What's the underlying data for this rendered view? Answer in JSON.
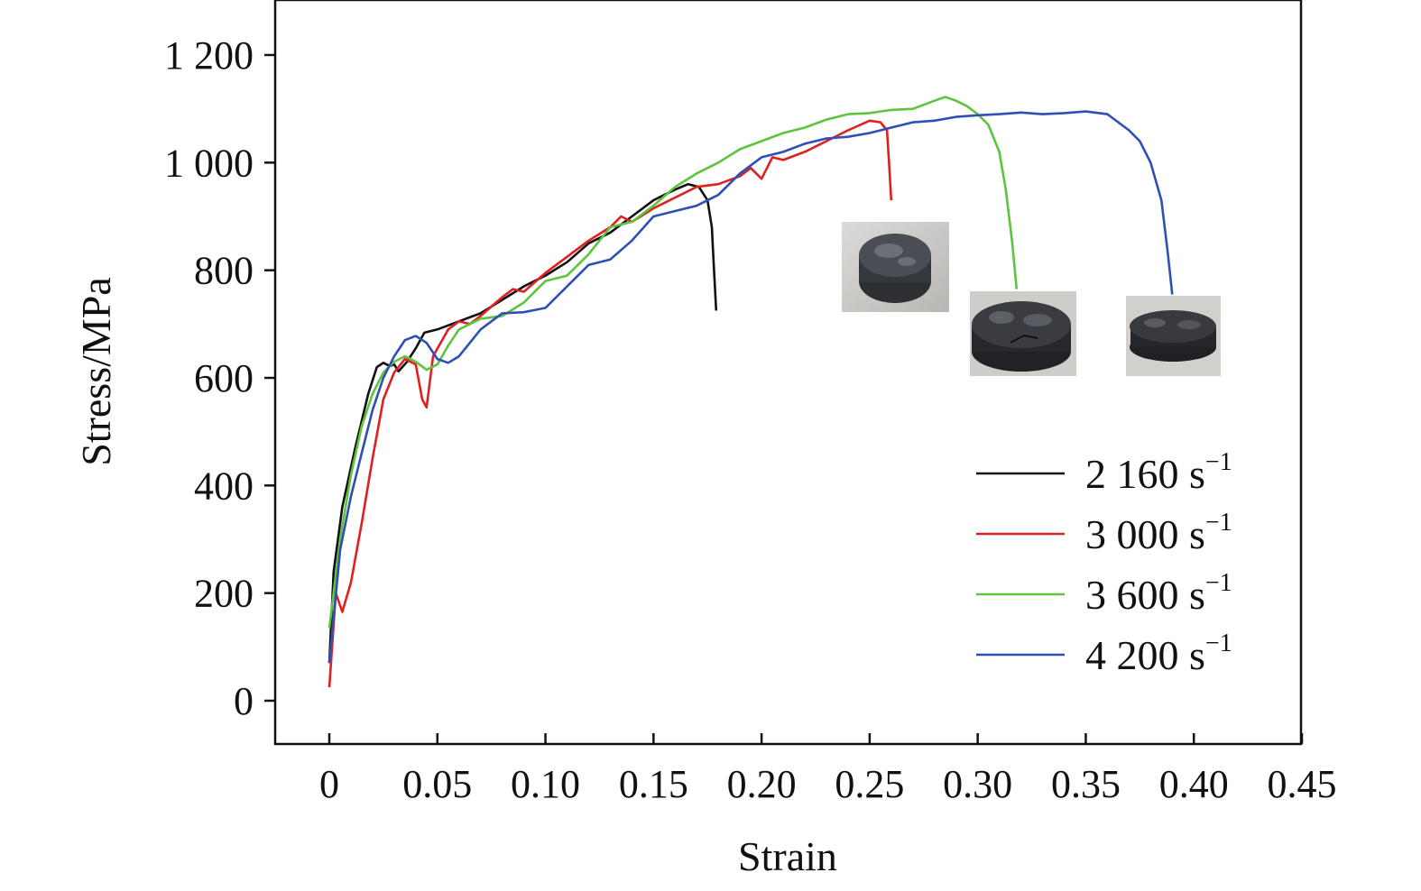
{
  "chart_data": {
    "type": "line",
    "title": "",
    "xlabel": "Strain",
    "ylabel": "Stress/MPa",
    "xlim": [
      -0.025,
      0.45
    ],
    "ylim": [
      -80,
      1300
    ],
    "x_ticks": [
      0,
      0.05,
      0.1,
      0.15,
      0.2,
      0.25,
      0.3,
      0.35,
      0.4,
      0.45
    ],
    "x_tick_labels": [
      "0",
      "0.05",
      "0.10",
      "0.15",
      "0.20",
      "0.25",
      "0.30",
      "0.35",
      "0.40",
      "0.45"
    ],
    "y_ticks": [
      0,
      200,
      400,
      600,
      800,
      1000,
      1200
    ],
    "y_tick_labels": [
      "0",
      "200",
      "400",
      "600",
      "800",
      "1 000",
      "1 200"
    ],
    "grid": false,
    "legend_position": "bottom-right",
    "series": [
      {
        "name": "2 160 s",
        "name_superscript": "−1",
        "color": "#111111",
        "points": [
          [
            0.0,
            70
          ],
          [
            0.002,
            240
          ],
          [
            0.006,
            360
          ],
          [
            0.012,
            470
          ],
          [
            0.018,
            570
          ],
          [
            0.022,
            620
          ],
          [
            0.025,
            628
          ],
          [
            0.028,
            622
          ],
          [
            0.03,
            625
          ],
          [
            0.032,
            612
          ],
          [
            0.036,
            630
          ],
          [
            0.04,
            655
          ],
          [
            0.044,
            684
          ],
          [
            0.05,
            690
          ],
          [
            0.06,
            705
          ],
          [
            0.07,
            720
          ],
          [
            0.08,
            745
          ],
          [
            0.09,
            770
          ],
          [
            0.1,
            790
          ],
          [
            0.11,
            815
          ],
          [
            0.12,
            850
          ],
          [
            0.13,
            870
          ],
          [
            0.14,
            900
          ],
          [
            0.15,
            930
          ],
          [
            0.16,
            950
          ],
          [
            0.166,
            960
          ],
          [
            0.171,
            955
          ],
          [
            0.175,
            930
          ],
          [
            0.177,
            880
          ],
          [
            0.178,
            800
          ],
          [
            0.179,
            725
          ]
        ]
      },
      {
        "name": "3 000 s",
        "name_superscript": "−1",
        "color": "#e02020",
        "points": [
          [
            0.0,
            25
          ],
          [
            0.003,
            200
          ],
          [
            0.006,
            165
          ],
          [
            0.01,
            220
          ],
          [
            0.015,
            330
          ],
          [
            0.02,
            450
          ],
          [
            0.025,
            560
          ],
          [
            0.03,
            610
          ],
          [
            0.035,
            635
          ],
          [
            0.04,
            625
          ],
          [
            0.043,
            560
          ],
          [
            0.045,
            545
          ],
          [
            0.048,
            640
          ],
          [
            0.055,
            690
          ],
          [
            0.06,
            705
          ],
          [
            0.065,
            700
          ],
          [
            0.07,
            715
          ],
          [
            0.08,
            750
          ],
          [
            0.085,
            765
          ],
          [
            0.09,
            760
          ],
          [
            0.1,
            795
          ],
          [
            0.11,
            825
          ],
          [
            0.12,
            855
          ],
          [
            0.13,
            880
          ],
          [
            0.135,
            900
          ],
          [
            0.14,
            890
          ],
          [
            0.15,
            915
          ],
          [
            0.16,
            935
          ],
          [
            0.17,
            955
          ],
          [
            0.18,
            960
          ],
          [
            0.19,
            975
          ],
          [
            0.195,
            990
          ],
          [
            0.2,
            970
          ],
          [
            0.205,
            1010
          ],
          [
            0.21,
            1005
          ],
          [
            0.22,
            1020
          ],
          [
            0.23,
            1040
          ],
          [
            0.24,
            1060
          ],
          [
            0.25,
            1078
          ],
          [
            0.255,
            1075
          ],
          [
            0.258,
            1060
          ],
          [
            0.259,
            1000
          ],
          [
            0.26,
            930
          ]
        ]
      },
      {
        "name": "3 600 s",
        "name_superscript": "−1",
        "color": "#5cc53d",
        "points": [
          [
            0.0,
            135
          ],
          [
            0.005,
            300
          ],
          [
            0.01,
            420
          ],
          [
            0.015,
            510
          ],
          [
            0.02,
            570
          ],
          [
            0.025,
            610
          ],
          [
            0.03,
            630
          ],
          [
            0.035,
            640
          ],
          [
            0.04,
            630
          ],
          [
            0.045,
            615
          ],
          [
            0.05,
            625
          ],
          [
            0.055,
            660
          ],
          [
            0.06,
            690
          ],
          [
            0.07,
            710
          ],
          [
            0.08,
            715
          ],
          [
            0.09,
            740
          ],
          [
            0.1,
            780
          ],
          [
            0.11,
            790
          ],
          [
            0.12,
            830
          ],
          [
            0.13,
            880
          ],
          [
            0.14,
            890
          ],
          [
            0.15,
            920
          ],
          [
            0.16,
            955
          ],
          [
            0.17,
            980
          ],
          [
            0.18,
            1000
          ],
          [
            0.19,
            1025
          ],
          [
            0.2,
            1040
          ],
          [
            0.21,
            1055
          ],
          [
            0.22,
            1065
          ],
          [
            0.23,
            1080
          ],
          [
            0.24,
            1090
          ],
          [
            0.25,
            1092
          ],
          [
            0.26,
            1098
          ],
          [
            0.27,
            1100
          ],
          [
            0.28,
            1115
          ],
          [
            0.285,
            1122
          ],
          [
            0.29,
            1115
          ],
          [
            0.295,
            1105
          ],
          [
            0.3,
            1090
          ],
          [
            0.305,
            1070
          ],
          [
            0.31,
            1020
          ],
          [
            0.313,
            950
          ],
          [
            0.316,
            850
          ],
          [
            0.318,
            765
          ]
        ]
      },
      {
        "name": "4 200 s",
        "name_superscript": "−1",
        "color": "#2f4fb5",
        "points": [
          [
            0.0,
            70
          ],
          [
            0.005,
            280
          ],
          [
            0.01,
            380
          ],
          [
            0.015,
            460
          ],
          [
            0.02,
            540
          ],
          [
            0.025,
            600
          ],
          [
            0.03,
            640
          ],
          [
            0.035,
            670
          ],
          [
            0.04,
            678
          ],
          [
            0.045,
            665
          ],
          [
            0.05,
            635
          ],
          [
            0.055,
            628
          ],
          [
            0.06,
            640
          ],
          [
            0.07,
            690
          ],
          [
            0.08,
            720
          ],
          [
            0.09,
            722
          ],
          [
            0.1,
            730
          ],
          [
            0.11,
            770
          ],
          [
            0.12,
            810
          ],
          [
            0.13,
            820
          ],
          [
            0.14,
            855
          ],
          [
            0.15,
            900
          ],
          [
            0.16,
            910
          ],
          [
            0.17,
            920
          ],
          [
            0.18,
            940
          ],
          [
            0.19,
            980
          ],
          [
            0.2,
            1010
          ],
          [
            0.21,
            1020
          ],
          [
            0.22,
            1035
          ],
          [
            0.23,
            1045
          ],
          [
            0.24,
            1048
          ],
          [
            0.25,
            1055
          ],
          [
            0.26,
            1065
          ],
          [
            0.27,
            1075
          ],
          [
            0.28,
            1078
          ],
          [
            0.29,
            1085
          ],
          [
            0.3,
            1088
          ],
          [
            0.31,
            1090
          ],
          [
            0.32,
            1093
          ],
          [
            0.33,
            1090
          ],
          [
            0.34,
            1092
          ],
          [
            0.35,
            1095
          ],
          [
            0.36,
            1090
          ],
          [
            0.37,
            1060
          ],
          [
            0.375,
            1040
          ],
          [
            0.38,
            1000
          ],
          [
            0.385,
            930
          ],
          [
            0.388,
            830
          ],
          [
            0.39,
            755
          ]
        ]
      }
    ]
  },
  "specimen_photos": [
    {
      "label": "specimen-photo-3000"
    },
    {
      "label": "specimen-photo-3600"
    },
    {
      "label": "specimen-photo-4200"
    }
  ]
}
